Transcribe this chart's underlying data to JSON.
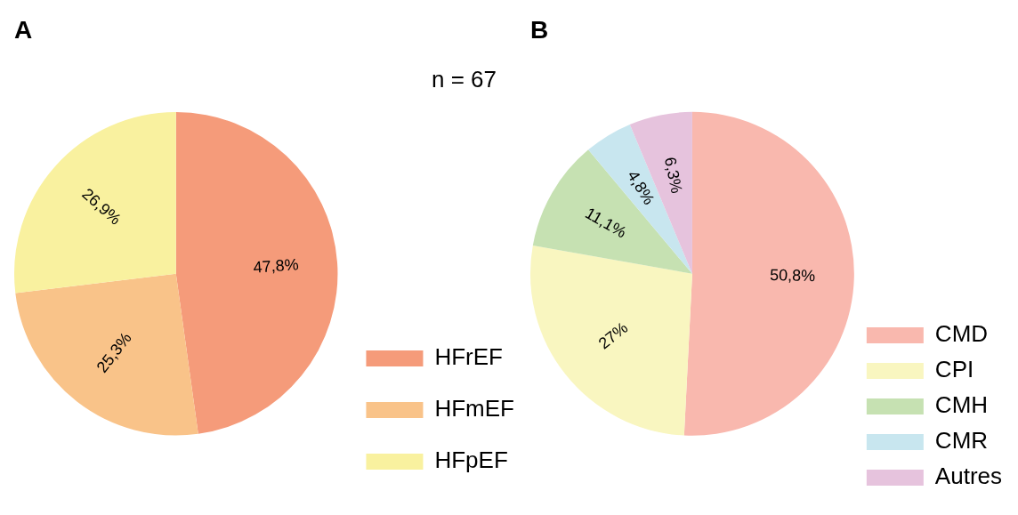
{
  "chart_data": [
    {
      "type": "pie",
      "title": "A",
      "categories": [
        "HFrEF",
        "HFmEF",
        "HFpEF"
      ],
      "values": [
        47.8,
        25.3,
        26.9
      ],
      "colors": [
        "#f59b7a",
        "#f9c389",
        "#f9f19f"
      ],
      "value_labels": [
        "47,8%",
        "25,3%",
        "26,9%"
      ],
      "legend": "bottom right",
      "annotations": [
        "n = 67"
      ]
    },
    {
      "type": "pie",
      "title": "B",
      "categories": [
        "CMD",
        "CPI",
        "CMH",
        "CMR",
        "Autres"
      ],
      "values": [
        50.8,
        27,
        11.1,
        4.8,
        6.3
      ],
      "colors": [
        "#f9b8ae",
        "#f9f6c0",
        "#c6e1b2",
        "#c8e6ef",
        "#e6c3dd"
      ],
      "value_labels": [
        "50,8%",
        "27%",
        "11,1%",
        "4,8%",
        "6,3%"
      ],
      "legend": "bottom right"
    }
  ]
}
